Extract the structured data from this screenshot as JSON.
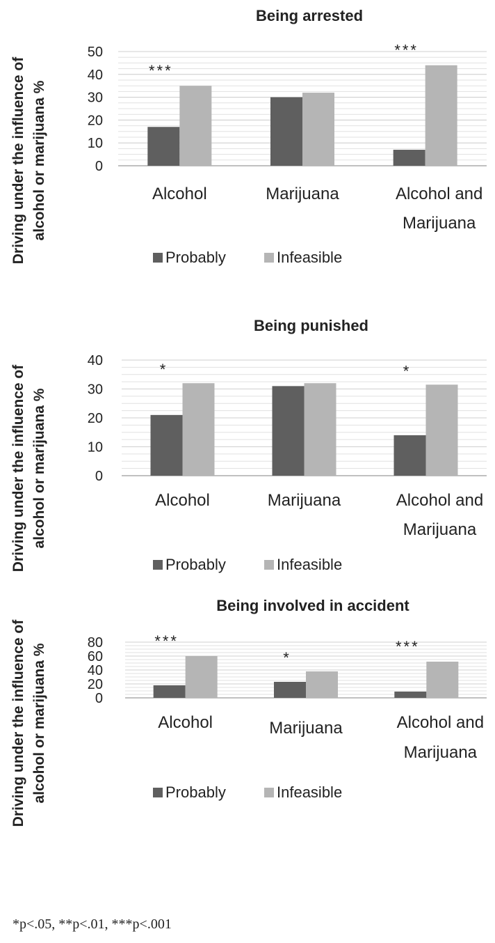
{
  "chart_data": [
    {
      "type": "bar",
      "title": "Being arrested",
      "ylabel": "Driving under the influence of alcohol or marijuana %",
      "categories": [
        "Alcohol",
        "Marijuana",
        "Alcohol and Marijuana"
      ],
      "series": [
        {
          "name": "Probably",
          "values": [
            17,
            30,
            7
          ]
        },
        {
          "name": "Infeasible",
          "values": [
            35,
            32,
            44
          ]
        }
      ],
      "significance": [
        "***",
        "",
        "***"
      ],
      "ylim": [
        0,
        50
      ],
      "yticks": [
        "0",
        "10",
        "20",
        "30",
        "40",
        "50"
      ],
      "grid": true,
      "legend": "bottom",
      "colors": [
        "#5f5f5f",
        "#b5b5b5"
      ]
    },
    {
      "type": "bar",
      "title": "Being punished",
      "ylabel": "Driving under the influence of alcohol or marijuana %",
      "categories": [
        "Alcohol",
        "Marijuana",
        "Alcohol and Marijuana"
      ],
      "series": [
        {
          "name": "Probably",
          "values": [
            21,
            31,
            14
          ]
        },
        {
          "name": "Infeasible",
          "values": [
            32,
            32,
            31.5
          ]
        }
      ],
      "significance": [
        "*",
        "",
        "*"
      ],
      "ylim": [
        0,
        40
      ],
      "yticks": [
        "0",
        "10",
        "20",
        "30",
        "40"
      ],
      "grid": true,
      "legend": "bottom",
      "colors": [
        "#5f5f5f",
        "#b5b5b5"
      ]
    },
    {
      "type": "bar",
      "title": "Being involved in accident",
      "ylabel": "Driving under the influence of alcohol or marijuana %",
      "categories": [
        "Alcohol",
        "Marijuana",
        "Alcohol and Marijuana"
      ],
      "series": [
        {
          "name": "Probably",
          "values": [
            18,
            23,
            9
          ]
        },
        {
          "name": "Infeasible",
          "values": [
            60,
            38,
            52
          ]
        }
      ],
      "significance": [
        "***",
        "*",
        "***"
      ],
      "ylim": [
        0,
        80
      ],
      "yticks": [
        "0",
        "20",
        "40",
        "60",
        "80"
      ],
      "grid": true,
      "legend": "bottom",
      "colors": [
        "#5f5f5f",
        "#b5b5b5"
      ]
    }
  ],
  "footnote": "*p<.05, **p<.01, ***p<.001"
}
